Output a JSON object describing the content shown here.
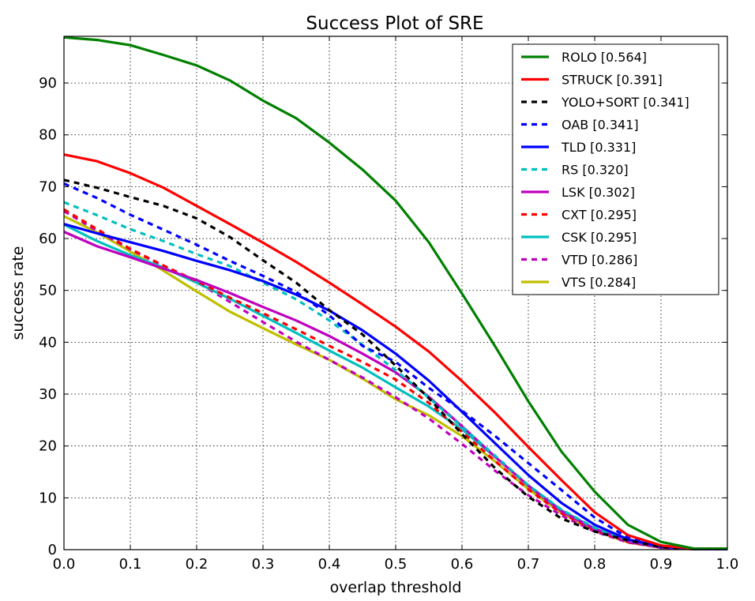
{
  "chart_data": {
    "type": "line",
    "title": "Success Plot of SRE",
    "xlabel": "overlap threshold",
    "ylabel": "success rate",
    "xlim": [
      0,
      1
    ],
    "ylim": [
      0,
      99
    ],
    "xticks": [
      "0.0",
      "0.1",
      "0.2",
      "0.3",
      "0.4",
      "0.5",
      "0.6",
      "0.7",
      "0.8",
      "0.9",
      "1.0"
    ],
    "yticks": [
      "0",
      "10",
      "20",
      "30",
      "40",
      "50",
      "60",
      "70",
      "80",
      "90"
    ],
    "grid": true,
    "legend_position": "top-right",
    "x": [
      0.0,
      0.05,
      0.1,
      0.15,
      0.2,
      0.25,
      0.3,
      0.35,
      0.4,
      0.45,
      0.5,
      0.55,
      0.6,
      0.65,
      0.7,
      0.75,
      0.8,
      0.85,
      0.9,
      0.95,
      1.0
    ],
    "series": [
      {
        "name": "ROLO [0.564]",
        "color": "#008000",
        "dashed": false,
        "values": [
          98.8,
          98.3,
          97.3,
          95.4,
          93.4,
          90.5,
          86.6,
          83.2,
          78.5,
          73.3,
          67.3,
          59.3,
          49.4,
          39.2,
          28.6,
          18.9,
          11.2,
          4.8,
          1.5,
          0.2,
          0.2
        ]
      },
      {
        "name": "STRUCK [0.391]",
        "color": "#ff0000",
        "dashed": false,
        "values": [
          76.2,
          74.9,
          72.6,
          69.8,
          66.3,
          62.8,
          59.2,
          55.5,
          51.5,
          47.3,
          43.0,
          38.2,
          32.5,
          26.4,
          19.8,
          13.4,
          7.2,
          2.8,
          0.8,
          0.2,
          0.2
        ]
      },
      {
        "name": "YOLO+SORT [0.341]",
        "color": "#000000",
        "dashed": true,
        "values": [
          71.3,
          69.8,
          68.0,
          66.3,
          63.9,
          60.3,
          55.8,
          51.5,
          46.2,
          41.5,
          35.5,
          29.2,
          22.3,
          15.7,
          10.2,
          6.0,
          3.5,
          1.8,
          0.5,
          0.1,
          0.1
        ]
      },
      {
        "name": "OAB [0.341]",
        "color": "#0000ff",
        "dashed": true,
        "values": [
          70.6,
          67.8,
          64.6,
          61.7,
          58.8,
          55.7,
          52.8,
          49.7,
          45.2,
          39.3,
          36.2,
          31.2,
          26.8,
          21.9,
          16.7,
          11.5,
          6.2,
          2.3,
          0.7,
          0.2,
          0.2
        ]
      },
      {
        "name": "TLD [0.331]",
        "color": "#0000ff",
        "dashed": false,
        "values": [
          62.8,
          61.0,
          59.3,
          57.6,
          55.7,
          53.9,
          51.8,
          49.2,
          46.1,
          42.3,
          37.8,
          32.6,
          26.6,
          20.5,
          14.4,
          9.0,
          4.8,
          2.0,
          0.6,
          0.1,
          0.1
        ]
      },
      {
        "name": "RS [0.320]",
        "color": "#00bfbf",
        "dashed": true,
        "values": [
          67.0,
          64.5,
          61.8,
          59.5,
          57.0,
          54.7,
          51.5,
          48.3,
          44.2,
          39.5,
          34.6,
          29.3,
          23.7,
          18.1,
          12.4,
          7.7,
          4.2,
          1.8,
          0.5,
          0.1,
          0.1
        ]
      },
      {
        "name": "LSK [0.302]",
        "color": "#bf00bf",
        "dashed": false,
        "values": [
          61.3,
          58.5,
          56.4,
          54.2,
          52.0,
          49.5,
          46.8,
          44.2,
          41.2,
          37.8,
          34.2,
          29.5,
          23.8,
          17.9,
          12.3,
          7.4,
          4.0,
          1.6,
          0.4,
          0.1,
          0.1
        ]
      },
      {
        "name": "CXT [0.295]",
        "color": "#ff0000",
        "dashed": true,
        "values": [
          65.6,
          61.8,
          58.0,
          54.8,
          51.8,
          48.6,
          45.6,
          42.5,
          39.3,
          36.2,
          32.8,
          28.3,
          22.7,
          17.1,
          11.6,
          7.0,
          3.8,
          1.5,
          0.4,
          0.1,
          0.1
        ]
      },
      {
        "name": "CSK [0.295]",
        "color": "#00bfbf",
        "dashed": false,
        "values": [
          62.7,
          59.5,
          56.8,
          54.4,
          51.5,
          48.4,
          45.1,
          41.8,
          38.4,
          35.1,
          31.3,
          27.6,
          23.2,
          17.9,
          12.4,
          7.6,
          4.1,
          1.7,
          0.5,
          0.1,
          0.1
        ]
      },
      {
        "name": "VTD [0.286]",
        "color": "#bf00bf",
        "dashed": true,
        "values": [
          65.3,
          61.5,
          57.9,
          54.7,
          51.6,
          47.8,
          43.9,
          40.1,
          36.6,
          33.2,
          29.4,
          25.3,
          20.4,
          15.2,
          10.5,
          6.6,
          3.5,
          1.4,
          0.4,
          0.1,
          0.1
        ]
      },
      {
        "name": "VTS [0.284]",
        "color": "#bfbf00",
        "dashed": false,
        "values": [
          64.3,
          61.2,
          57.5,
          53.8,
          49.8,
          45.9,
          42.7,
          39.6,
          36.6,
          33.0,
          29.0,
          25.9,
          21.9,
          17.0,
          11.7,
          7.0,
          3.7,
          1.4,
          0.4,
          0.1,
          0.1
        ]
      }
    ]
  }
}
